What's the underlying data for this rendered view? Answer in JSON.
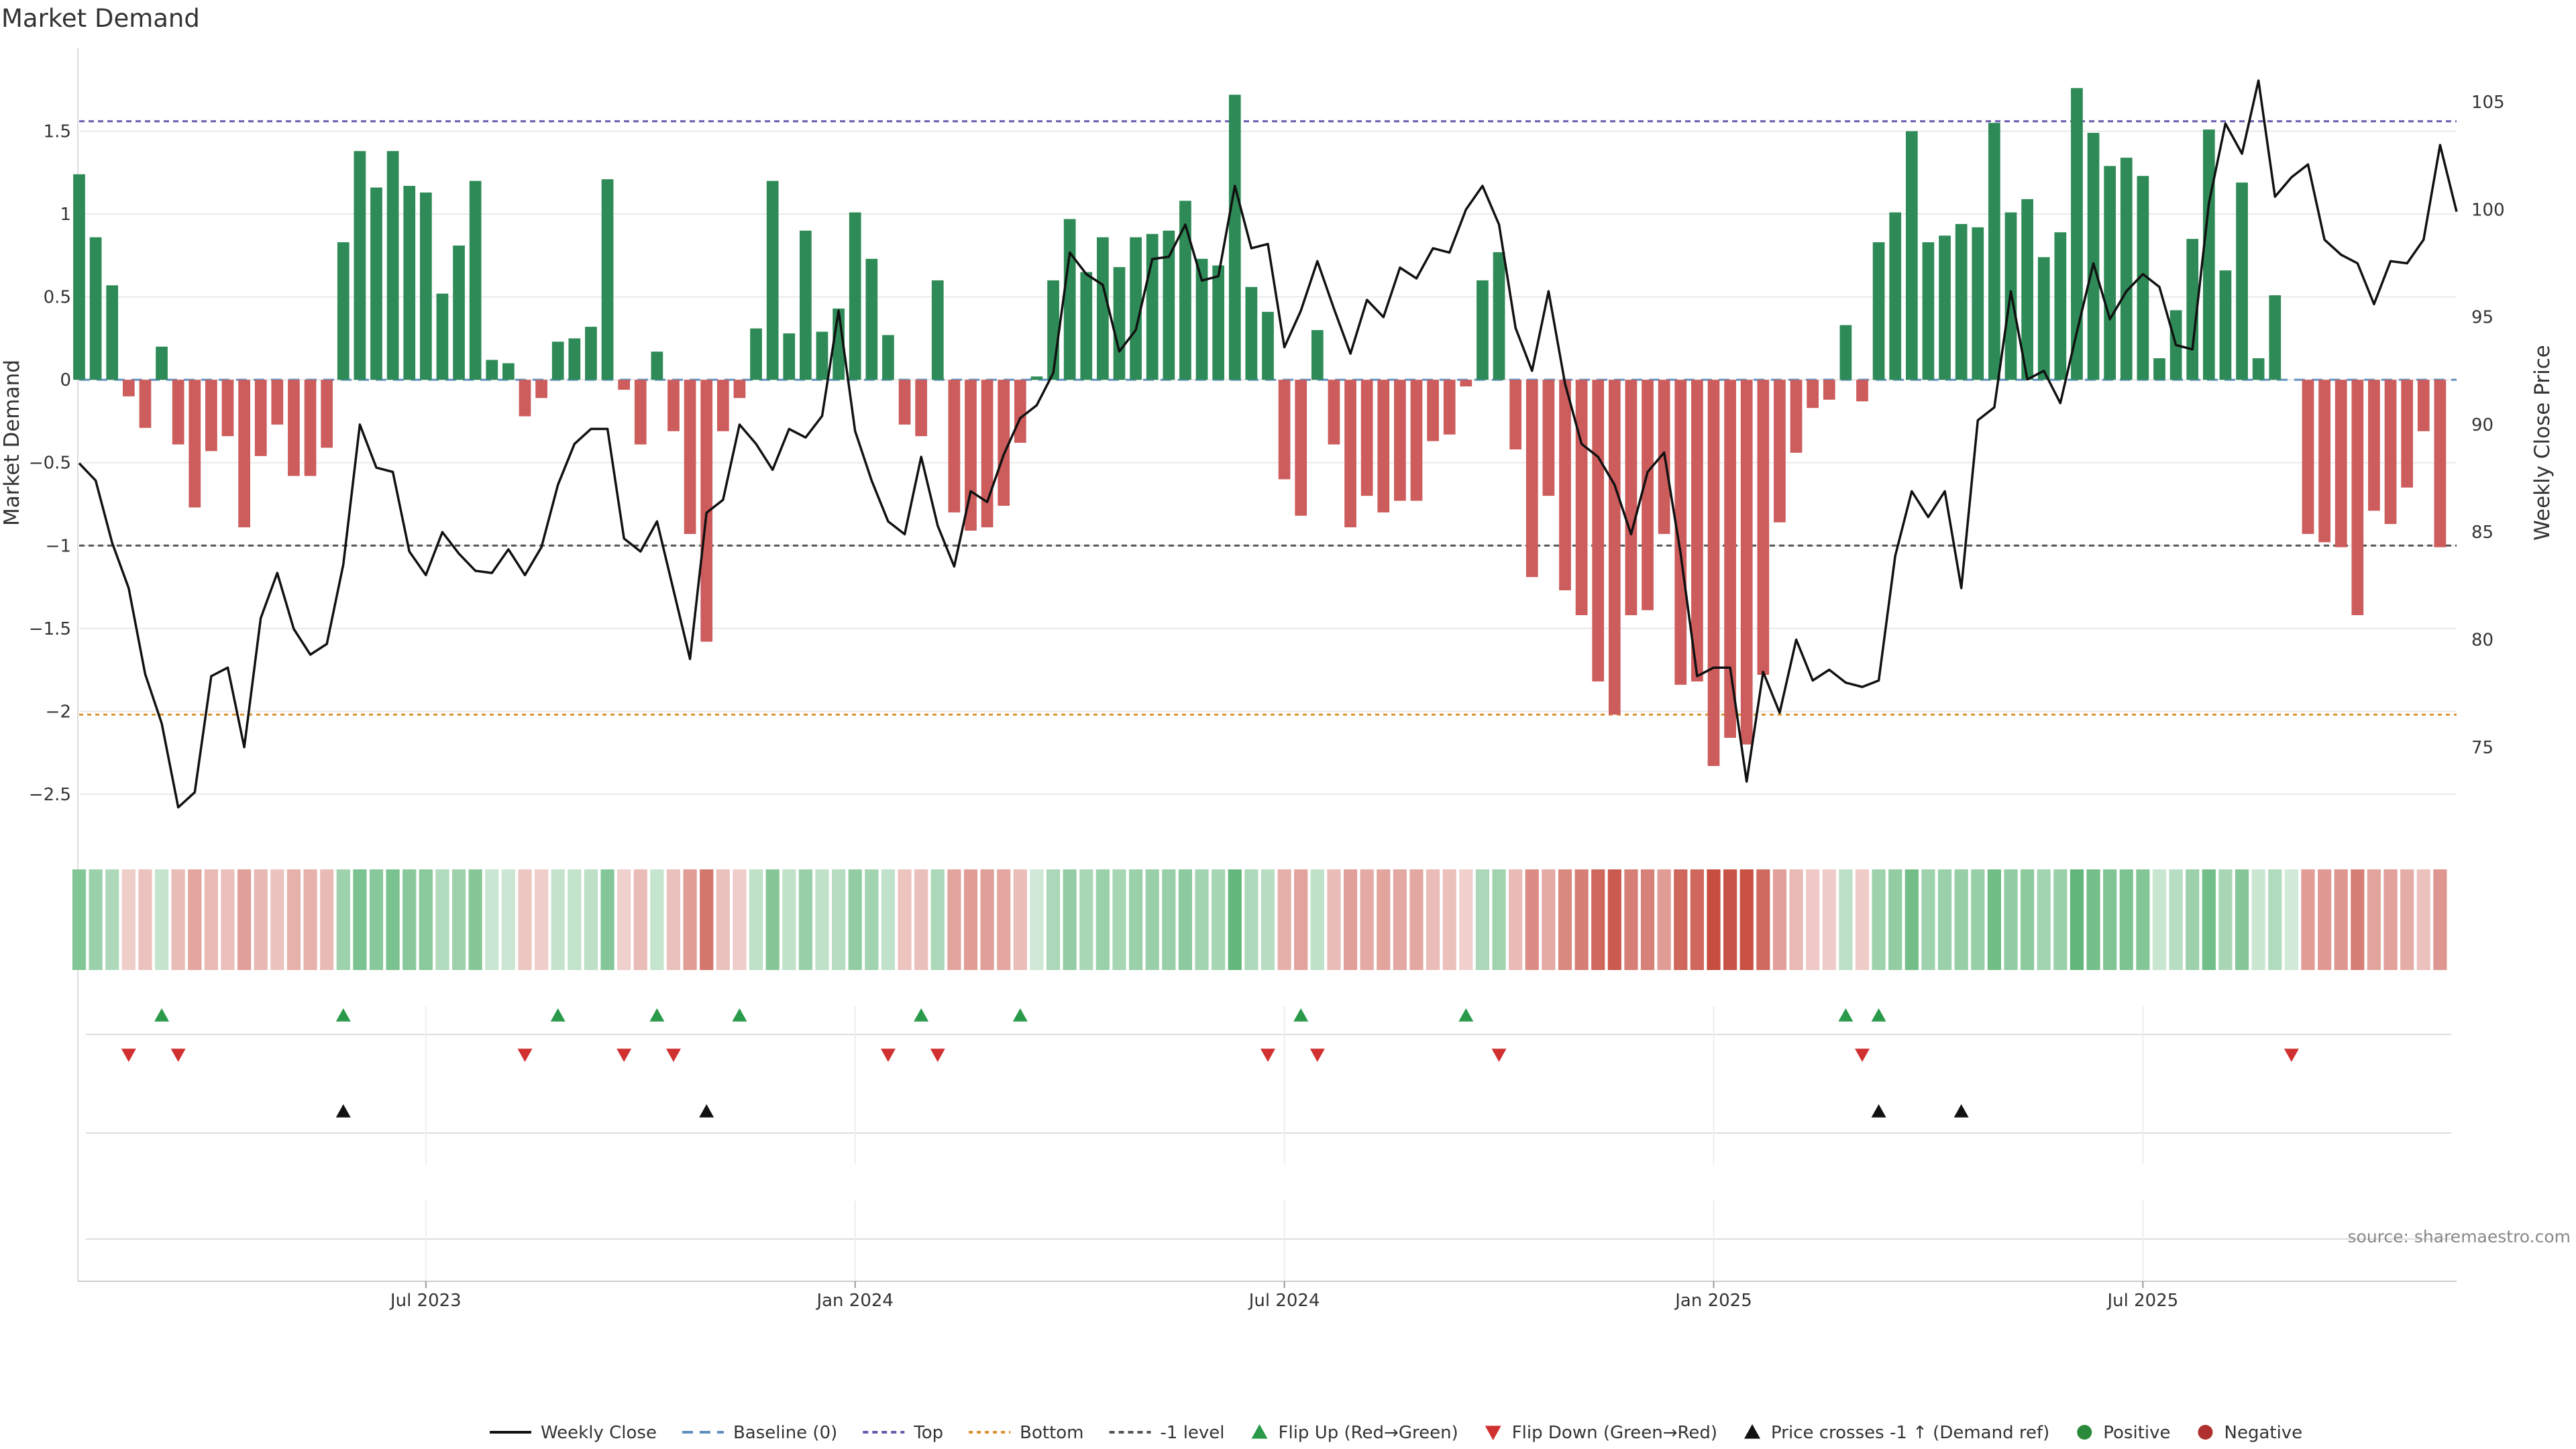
{
  "chart_data": {
    "type": "bar",
    "title": "Market Demand",
    "ylabel_left": "Market Demand",
    "ylabel_right": "Weekly Close Price",
    "source": "source: sharemaestro.com",
    "left_axis": {
      "ylim": [
        -2.8,
        2.0
      ],
      "ticks": [
        1.5,
        1,
        0.5,
        0,
        -0.5,
        -1,
        -1.5,
        -2,
        -2.5
      ],
      "tick_labels": [
        "1.5",
        "1",
        "0.5",
        "0",
        "−0.5",
        "−1",
        "−1.5",
        "−2",
        "−2.5"
      ]
    },
    "right_axis": {
      "ylim": [
        70.5,
        107.5
      ],
      "ticks": [
        105,
        100,
        95,
        90,
        85,
        80,
        75
      ],
      "tick_labels": [
        "105",
        "100",
        "95",
        "90",
        "85",
        "80",
        "75"
      ]
    },
    "x_axis": {
      "week_range": [
        0,
        144
      ],
      "ticks": [
        21,
        47,
        73,
        99,
        125
      ],
      "tick_labels": [
        "Jul 2023",
        "Jan 2024",
        "Jul 2024",
        "Jan 2025",
        "Jul 2025"
      ]
    },
    "reference_lines": [
      {
        "name": "Top",
        "value": 1.56,
        "color": "#6a5aad"
      },
      {
        "name": "Bottom",
        "value": -2.02,
        "color": "#d9932c"
      },
      {
        "name": "-1 level",
        "value": -1.0,
        "color": "#555555"
      },
      {
        "name": "Baseline (0)",
        "value": 0,
        "color": "#5f8fbf"
      }
    ],
    "demand": [
      1.24,
      0.86,
      0.57,
      -0.1,
      -0.29,
      0.2,
      -0.39,
      -0.77,
      -0.43,
      -0.34,
      -0.89,
      -0.46,
      -0.27,
      -0.58,
      -0.58,
      -0.41,
      0.83,
      1.38,
      1.16,
      1.38,
      1.17,
      1.13,
      0.52,
      0.81,
      1.2,
      0.12,
      0.1,
      -0.22,
      -0.11,
      0.23,
      0.25,
      0.32,
      1.21,
      -0.06,
      -0.39,
      0.17,
      -0.31,
      -0.93,
      -1.58,
      -0.31,
      -0.11,
      0.31,
      1.2,
      0.28,
      0.9,
      0.29,
      0.43,
      1.01,
      0.73,
      0.27,
      -0.27,
      -0.34,
      0.6,
      -0.8,
      -0.91,
      -0.89,
      -0.76,
      -0.38,
      0.02,
      0.6,
      0.97,
      0.65,
      0.86,
      0.68,
      0.86,
      0.88,
      0.9,
      1.08,
      0.73,
      0.69,
      1.72,
      0.56,
      0.41,
      -0.6,
      -0.82,
      0.3,
      -0.39,
      -0.89,
      -0.7,
      -0.8,
      -0.73,
      -0.73,
      -0.37,
      -0.33,
      -0.04,
      0.6,
      0.77,
      -0.42,
      -1.19,
      -0.7,
      -1.27,
      -1.42,
      -1.82,
      -2.02,
      -1.42,
      -1.39,
      -0.93,
      -1.84,
      -1.82,
      -2.33,
      -2.16,
      -2.2,
      -1.78,
      -0.86,
      -0.44,
      -0.17,
      -0.12,
      0.33,
      -0.13,
      0.83,
      1.01,
      1.5,
      0.83,
      0.87,
      0.94,
      0.92,
      1.55,
      1.01,
      1.09,
      0.74,
      0.89,
      1.76,
      1.49,
      1.29,
      1.34,
      1.23,
      0.13,
      0.42,
      0.85,
      1.51,
      0.66,
      1.19,
      0.13,
      0.51,
      0,
      -0.93,
      -0.98,
      -1.01,
      -1.42,
      -0.79,
      -0.87,
      -0.65,
      -0.31,
      -1.01
    ],
    "weekly_close": [
      88.2,
      87.4,
      84.5,
      82.4,
      78.4,
      76.1,
      72.2,
      72.9,
      78.3,
      78.7,
      75.0,
      81.0,
      83.1,
      80.5,
      79.3,
      79.8,
      83.5,
      90.0,
      88.0,
      87.8,
      84.1,
      83.0,
      85.0,
      84.0,
      83.2,
      83.1,
      84.2,
      83.0,
      84.3,
      87.2,
      89.1,
      89.8,
      89.8,
      84.7,
      84.1,
      85.5,
      82.3,
      79.1,
      85.9,
      86.5,
      90.0,
      89.1,
      87.9,
      89.8,
      89.4,
      90.4,
      95.3,
      89.7,
      87.4,
      85.5,
      84.9,
      88.5,
      85.3,
      83.4,
      86.9,
      86.4,
      88.6,
      90.3,
      90.9,
      92.4,
      98.0,
      97.0,
      96.5,
      93.4,
      94.4,
      97.7,
      97.8,
      99.3,
      96.7,
      96.9,
      101.1,
      98.2,
      98.4,
      93.6,
      95.3,
      97.6,
      95.4,
      93.3,
      95.8,
      95.0,
      97.3,
      96.8,
      98.2,
      98.0,
      100.0,
      101.1,
      99.3,
      94.5,
      92.5,
      96.2,
      91.9,
      89.1,
      88.5,
      87.2,
      84.9,
      87.8,
      88.7,
      84.0,
      78.3,
      78.7,
      78.7,
      73.4,
      78.5,
      76.6,
      80.0,
      78.1,
      78.6,
      78.0,
      77.8,
      78.1,
      83.9,
      86.9,
      85.7,
      86.9,
      82.4,
      90.2,
      90.8,
      96.2,
      92.1,
      92.5,
      91.0,
      94.3,
      97.5,
      94.9,
      96.2,
      97.0,
      96.4,
      93.7,
      93.5,
      100.3,
      104.0,
      102.6,
      106.0,
      100.6,
      101.5,
      102.1,
      98.6,
      97.9,
      97.5,
      95.6,
      97.6,
      97.5,
      98.6,
      103.0,
      99.9
    ],
    "flip_up_weeks": [
      5,
      16,
      29,
      35,
      40,
      51,
      57,
      74,
      84,
      107,
      109
    ],
    "flip_down_weeks": [
      3,
      6,
      27,
      33,
      36,
      49,
      52,
      72,
      75,
      86,
      108,
      134
    ],
    "price_cross_weeks": [
      16,
      38,
      109,
      114
    ],
    "legend": [
      {
        "key": "weekly_close",
        "label": "Weekly Close",
        "color": "#111111"
      },
      {
        "key": "baseline",
        "label": "Baseline (0)",
        "color": "#5f8fbf"
      },
      {
        "key": "top",
        "label": "Top",
        "color": "#6a5aad"
      },
      {
        "key": "bottom",
        "label": "Bottom",
        "color": "#d9932c"
      },
      {
        "key": "minus1",
        "label": "-1 level",
        "color": "#555555"
      },
      {
        "key": "flip_up",
        "label": "Flip Up (Red→Green)",
        "color": "#2a9a4a"
      },
      {
        "key": "flip_down",
        "label": "Flip Down (Green→Red)",
        "color": "#d03030"
      },
      {
        "key": "price_cross",
        "label": "Price crosses -1 ↑ (Demand ref)",
        "color": "#111111"
      },
      {
        "key": "positive",
        "label": "Positive",
        "color": "#2a8a3a"
      },
      {
        "key": "negative",
        "label": "Negative",
        "color": "#b03030"
      }
    ],
    "colors": {
      "positive_bar": "#2e8b57",
      "negative_bar": "#cd5c5c",
      "heat_positive": "#2e9e4e",
      "heat_negative": "#c0392b"
    }
  }
}
